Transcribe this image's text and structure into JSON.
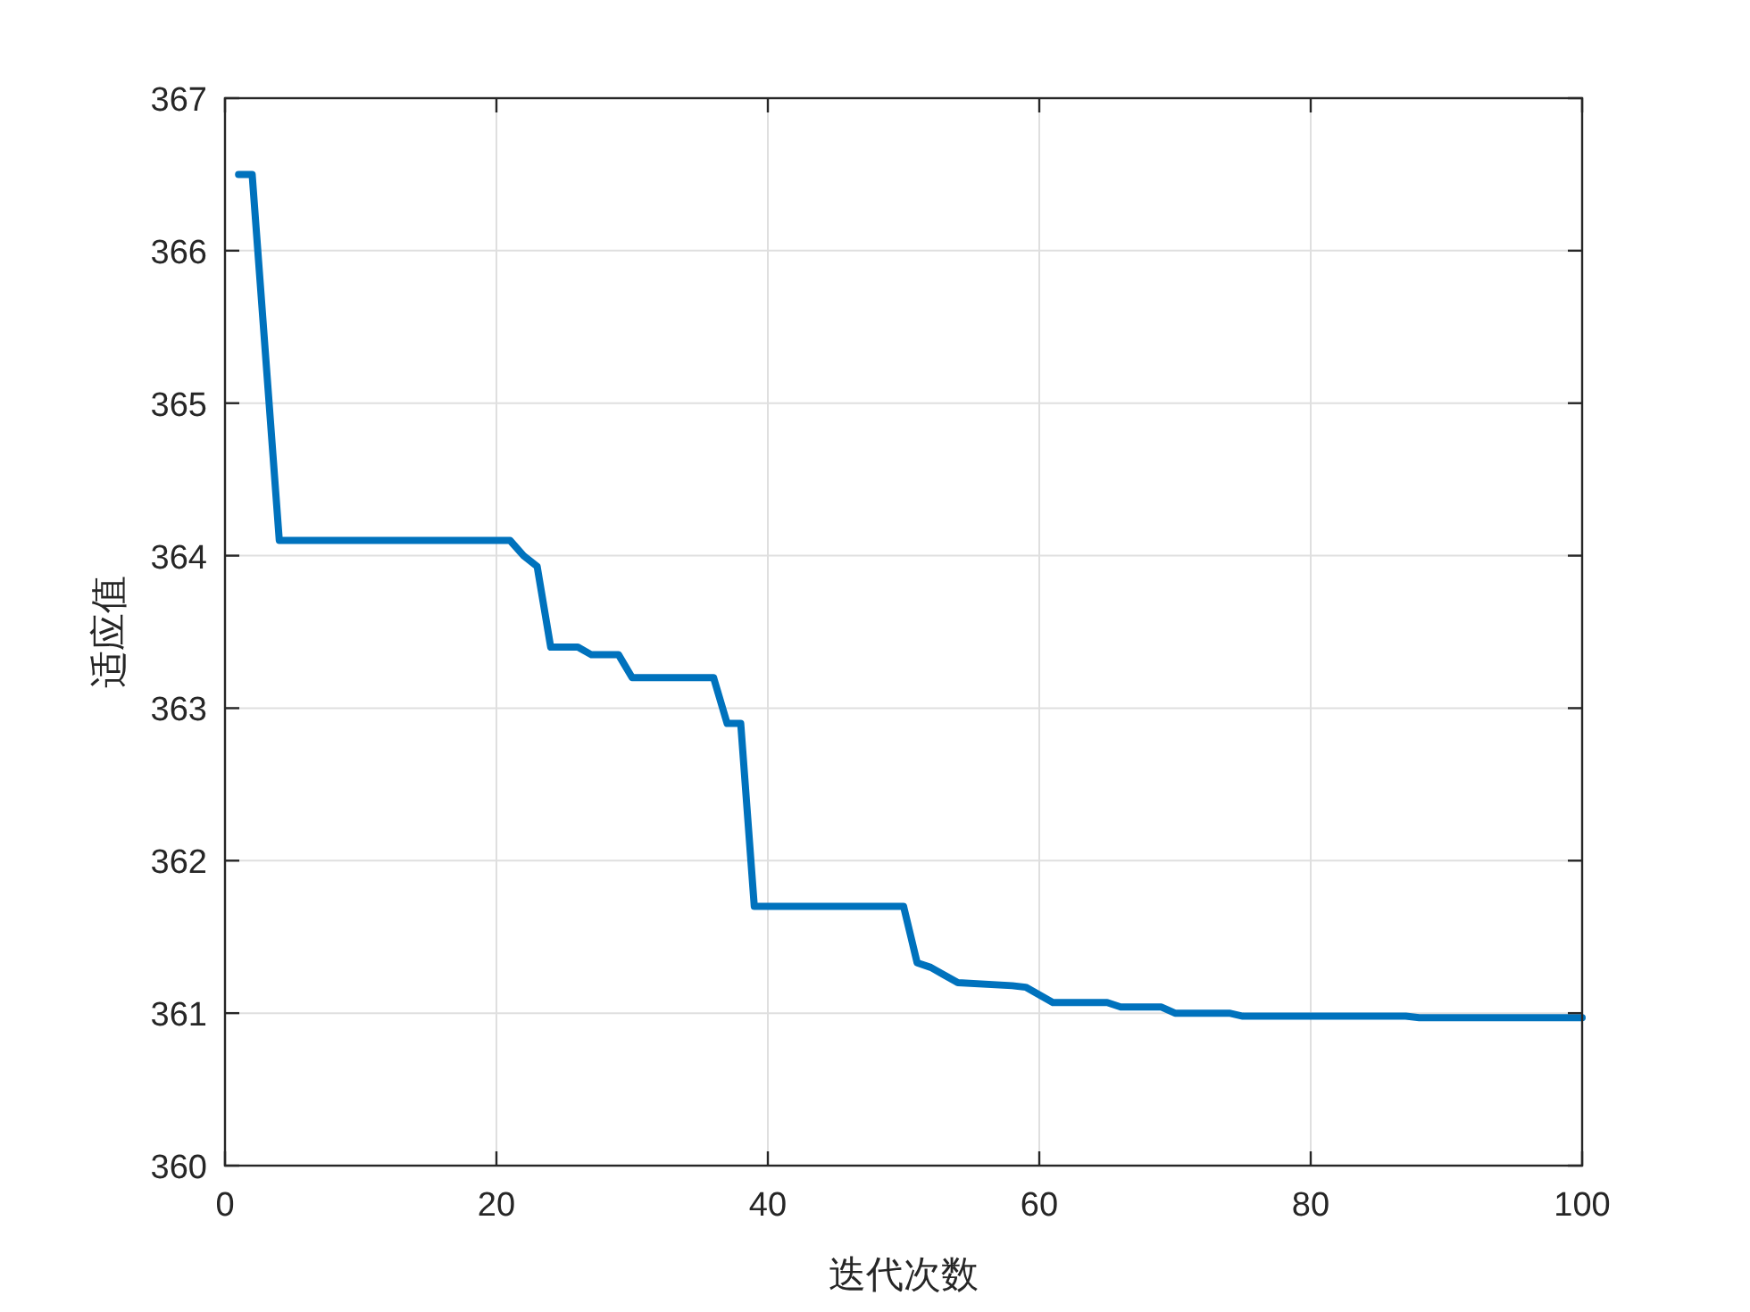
{
  "chart_data": {
    "type": "line",
    "xlabel": "迭代次数",
    "ylabel": "适应值",
    "x": [
      1,
      2,
      4,
      21,
      22,
      23,
      24,
      26,
      27,
      29,
      30,
      36,
      37,
      38,
      39,
      50,
      51,
      52,
      53,
      54,
      58,
      59,
      61,
      65,
      66,
      69,
      70,
      74,
      75,
      87,
      88,
      100
    ],
    "values": [
      366.5,
      366.5,
      364.1,
      364.1,
      364.0,
      363.93,
      363.4,
      363.4,
      363.35,
      363.35,
      363.2,
      363.2,
      362.9,
      362.9,
      361.7,
      361.7,
      361.33,
      361.3,
      361.25,
      361.2,
      361.18,
      361.17,
      361.07,
      361.07,
      361.04,
      361.04,
      361.0,
      361.0,
      360.98,
      360.98,
      360.97,
      360.97
    ],
    "color": "#0072bd",
    "xlim": [
      0,
      100
    ],
    "ylim": [
      360,
      367
    ],
    "xticks": [
      0,
      20,
      40,
      60,
      80,
      100
    ],
    "yticks": [
      360,
      361,
      362,
      363,
      364,
      365,
      366,
      367
    ],
    "grid": true,
    "line_style": "solid"
  }
}
